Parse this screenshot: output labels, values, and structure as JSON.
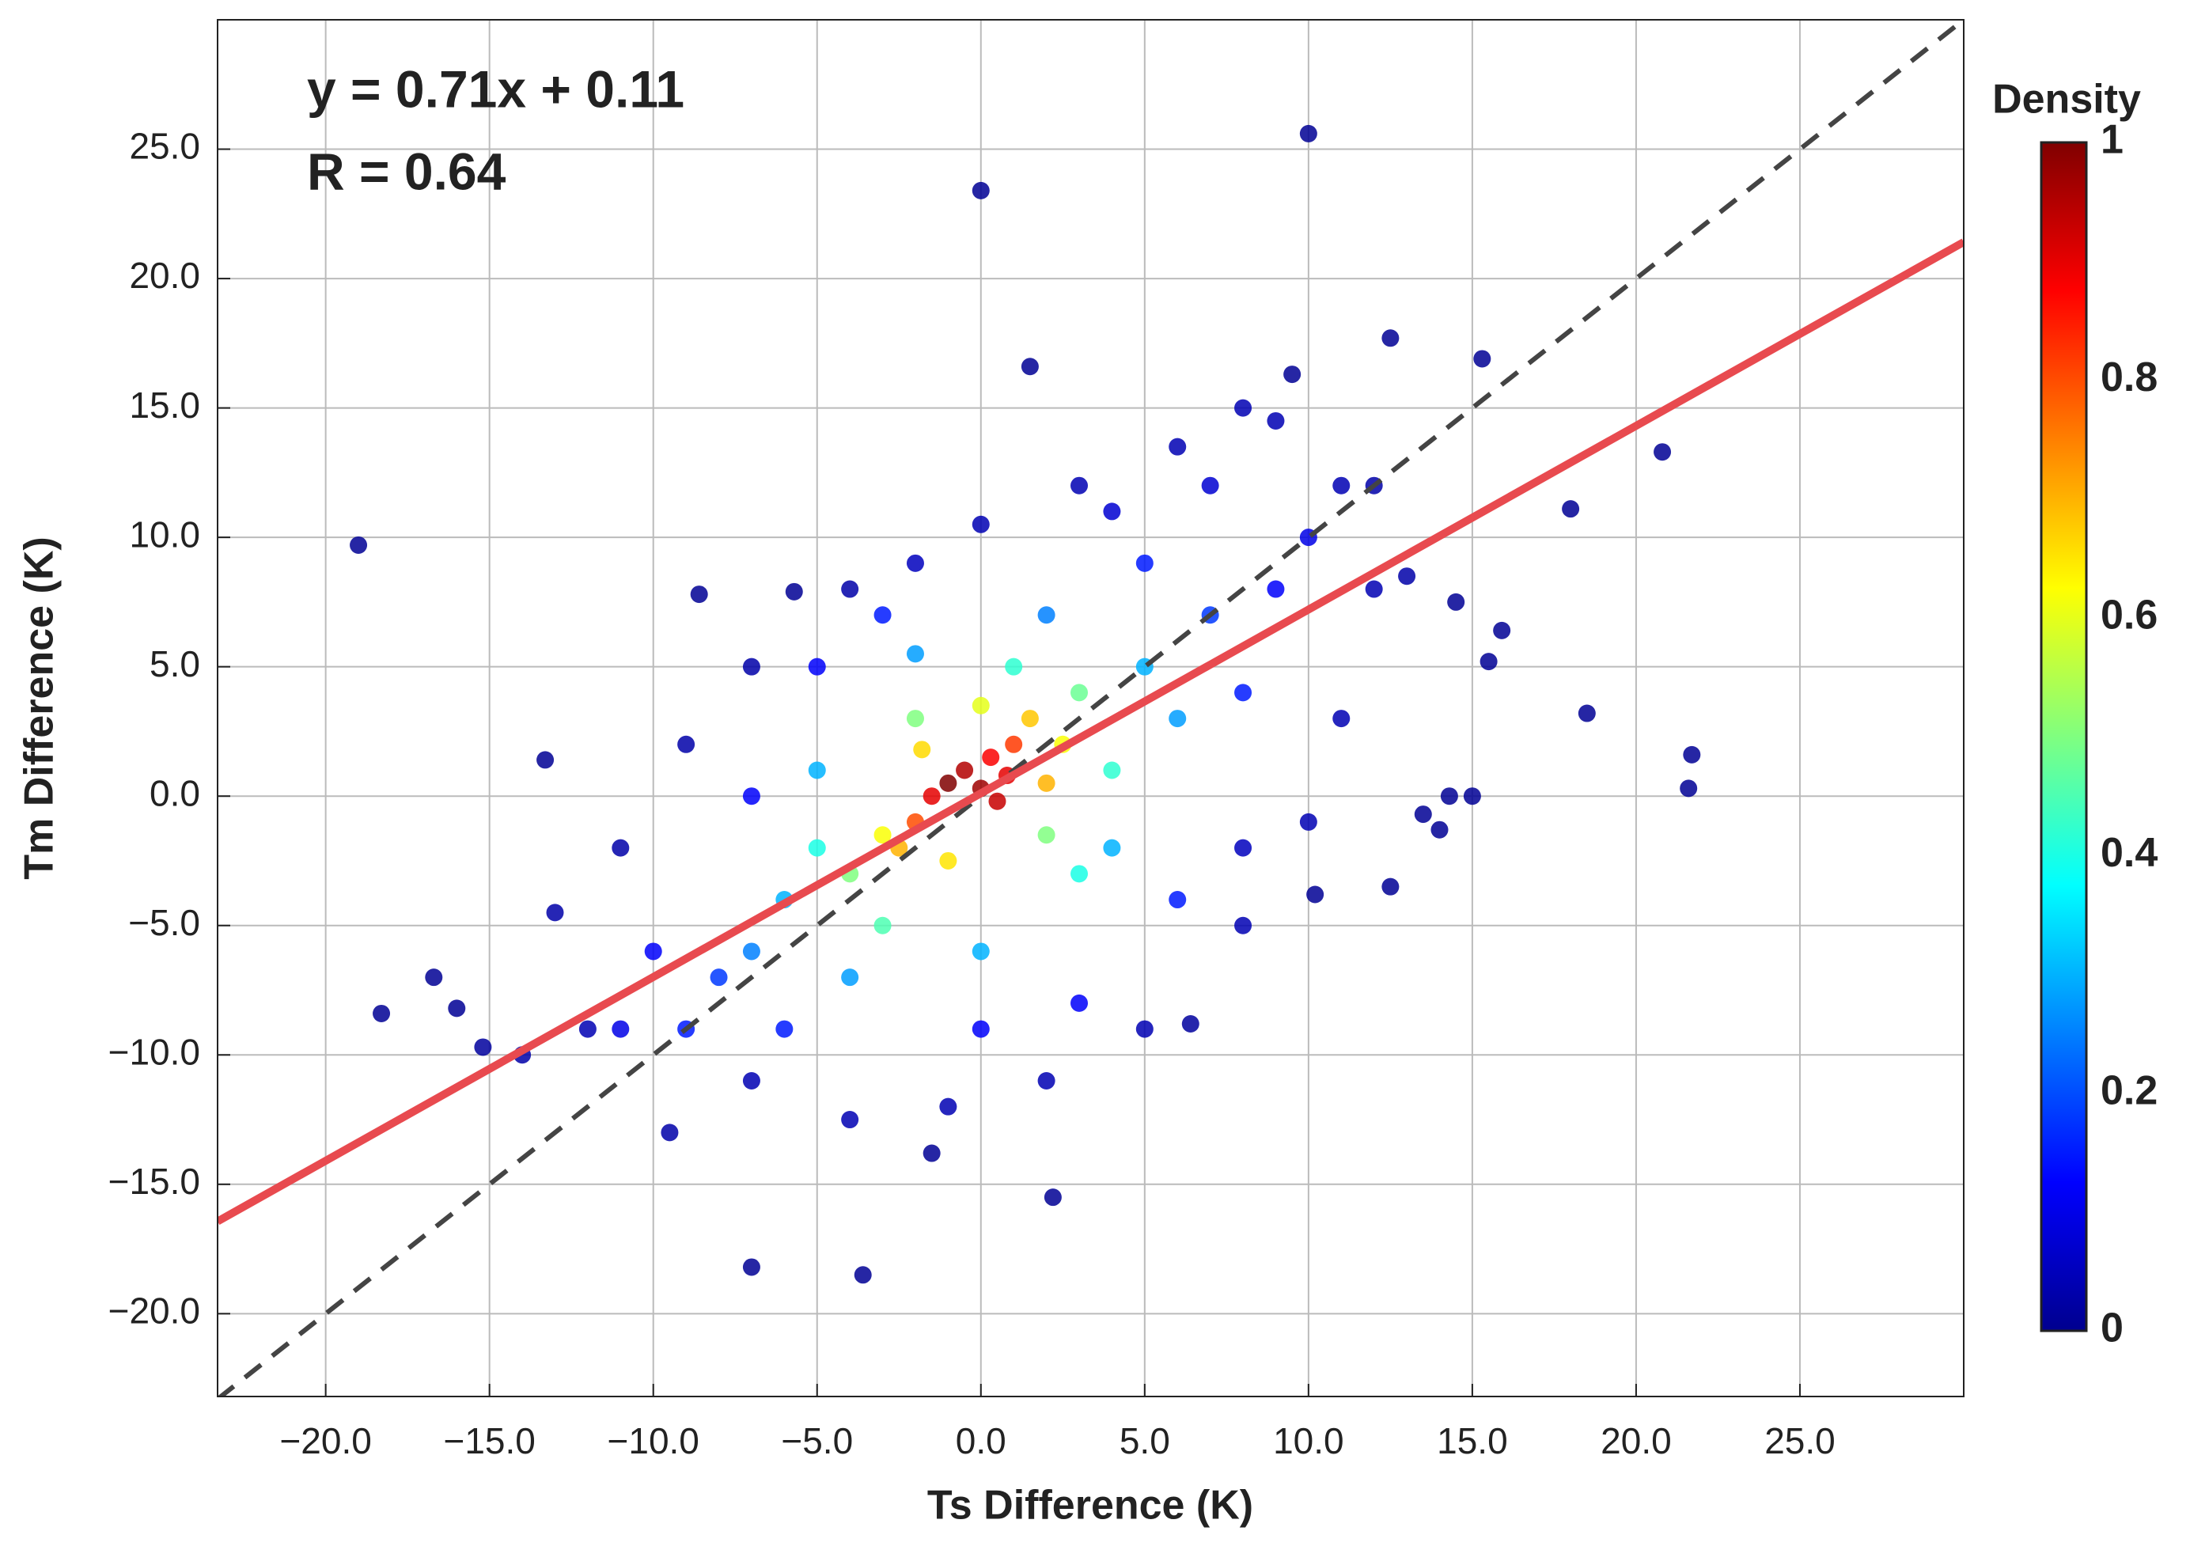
{
  "chart_data": {
    "type": "scatter",
    "x_label": "Ts Difference (K)",
    "y_label": "Tm Difference (K)",
    "xlim": [
      -23.3,
      30
    ],
    "ylim": [
      -23.2,
      30
    ],
    "xticks": [
      {
        "value": -20,
        "label": "−20.0"
      },
      {
        "value": -15,
        "label": "−15.0"
      },
      {
        "value": -10,
        "label": "−10.0"
      },
      {
        "value": -5,
        "label": "−5.0"
      },
      {
        "value": 0,
        "label": "0.0"
      },
      {
        "value": 5,
        "label": "5.0"
      },
      {
        "value": 10,
        "label": "10.0"
      },
      {
        "value": 15,
        "label": "15.0"
      },
      {
        "value": 20,
        "label": "20.0"
      },
      {
        "value": 25,
        "label": "25.0"
      }
    ],
    "yticks": [
      {
        "value": -20,
        "label": "−20.0"
      },
      {
        "value": -15,
        "label": "−15.0"
      },
      {
        "value": -10,
        "label": "−10.0"
      },
      {
        "value": -5,
        "label": "−5.0"
      },
      {
        "value": 0,
        "label": "0.0"
      },
      {
        "value": 5,
        "label": "5.0"
      },
      {
        "value": 10,
        "label": "10.0"
      },
      {
        "value": 15,
        "label": "15.0"
      },
      {
        "value": 20,
        "label": "20.0"
      },
      {
        "value": 25,
        "label": "25.0"
      }
    ],
    "grid": true,
    "colormap": "jet",
    "identity_line": true,
    "fit": {
      "slope": 0.71,
      "intercept": 0.11,
      "color": "#e84a4f"
    },
    "annotations": [
      {
        "text": "y = 0.71x + 0.11",
        "color": "#e84a4f"
      },
      {
        "text": "R = 0.64",
        "color": "#000000"
      }
    ],
    "colorbar": {
      "label": "Density",
      "lim": [
        0,
        1
      ],
      "ticks": [
        0,
        0.2,
        0.4,
        0.6,
        0.8,
        1
      ]
    },
    "x": [
      -19,
      0,
      10,
      1.5,
      -18.3,
      -16.7,
      -16,
      -15.2,
      -13.3,
      -8.6,
      -5.7,
      -7,
      -3.6,
      2.2,
      -1.5,
      6.4,
      10.2,
      12.5,
      13.5,
      14.3,
      15,
      14,
      18.5,
      21.7,
      21.6,
      18,
      20.8,
      15.3,
      12.5,
      15.9,
      15.5,
      14.5,
      9.5,
      8,
      -12,
      -13,
      -11,
      -9,
      -7,
      -4,
      0,
      3,
      6,
      9,
      11,
      12,
      11,
      10,
      8,
      5,
      2,
      -1,
      -4,
      -7,
      -9.5,
      -14,
      13,
      12,
      -2,
      8,
      -8,
      7,
      -9,
      8,
      -6,
      5,
      -7,
      6,
      -3,
      3,
      -10,
      9,
      0,
      -5,
      10,
      -11,
      7,
      4,
      -6,
      5,
      -4,
      -5,
      4,
      6,
      0,
      -2,
      2,
      -7,
      -4,
      3,
      -3,
      2,
      -2,
      4,
      -5,
      1,
      3,
      -2.5,
      1.5,
      -1,
      2,
      -3,
      0,
      2.5,
      -1.8,
      -2,
      1,
      0.3,
      -1.5,
      0.5,
      -0.5,
      0.8,
      0,
      -1
    ],
    "values": [
      9.7,
      23.4,
      25.6,
      16.6,
      -8.4,
      -7,
      -8.2,
      -9.7,
      1.4,
      7.8,
      7.9,
      -18.2,
      -18.5,
      -15.5,
      -13.8,
      -8.8,
      -3.8,
      -3.5,
      -0.7,
      0,
      0,
      -1.3,
      3.2,
      1.6,
      0.3,
      11.1,
      13.3,
      16.9,
      17.7,
      6.4,
      5.2,
      7.5,
      16.3,
      15,
      -9,
      -4.5,
      -2,
      2,
      5,
      8,
      10.5,
      12,
      13.5,
      14.5,
      12,
      8,
      3,
      -1,
      -5,
      -9,
      -11,
      -12,
      -12.5,
      -11,
      -13,
      -10,
      8.5,
      12,
      9,
      -2,
      -7,
      7,
      -9,
      4,
      -9,
      9,
      0,
      -4,
      7,
      -8,
      -6,
      8,
      -9,
      5,
      10,
      -9,
      12,
      11,
      -4,
      5,
      -7,
      1,
      -2,
      3,
      -6,
      5.5,
      7,
      -6,
      -3,
      4,
      -5,
      -1.5,
      3,
      1,
      -2,
      5,
      -3,
      -2,
      3,
      -2.5,
      0.5,
      -1.5,
      3.5,
      2,
      1.8,
      -1,
      2,
      1.5,
      0,
      -0.2,
      1,
      0.8,
      0.3,
      0.5
    ],
    "density": [
      0.02,
      0.02,
      0.02,
      0.02,
      0.02,
      0.02,
      0.02,
      0.03,
      0.02,
      0.02,
      0.02,
      0.02,
      0.02,
      0.02,
      0.02,
      0.03,
      0.02,
      0.02,
      0.02,
      0.02,
      0.02,
      0.02,
      0.02,
      0.02,
      0.02,
      0.02,
      0.02,
      0.02,
      0.02,
      0.02,
      0.02,
      0.02,
      0.02,
      0.05,
      0.05,
      0.04,
      0.04,
      0.04,
      0.04,
      0.04,
      0.05,
      0.05,
      0.05,
      0.05,
      0.05,
      0.05,
      0.05,
      0.05,
      0.05,
      0.05,
      0.05,
      0.05,
      0.05,
      0.05,
      0.04,
      0.04,
      0.04,
      0.04,
      0.06,
      0.06,
      0.18,
      0.18,
      0.15,
      0.15,
      0.15,
      0.15,
      0.12,
      0.15,
      0.15,
      0.12,
      0.12,
      0.12,
      0.12,
      0.12,
      0.1,
      0.1,
      0.08,
      0.08,
      0.3,
      0.3,
      0.28,
      0.3,
      0.3,
      0.28,
      0.3,
      0.28,
      0.25,
      0.25,
      0.5,
      0.48,
      0.45,
      0.5,
      0.5,
      0.42,
      0.4,
      0.42,
      0.4,
      0.7,
      0.68,
      0.65,
      0.7,
      0.62,
      0.6,
      0.62,
      0.66,
      0.8,
      0.82,
      0.88,
      0.9,
      0.93,
      0.95,
      0.9,
      0.97,
      1
    ]
  }
}
